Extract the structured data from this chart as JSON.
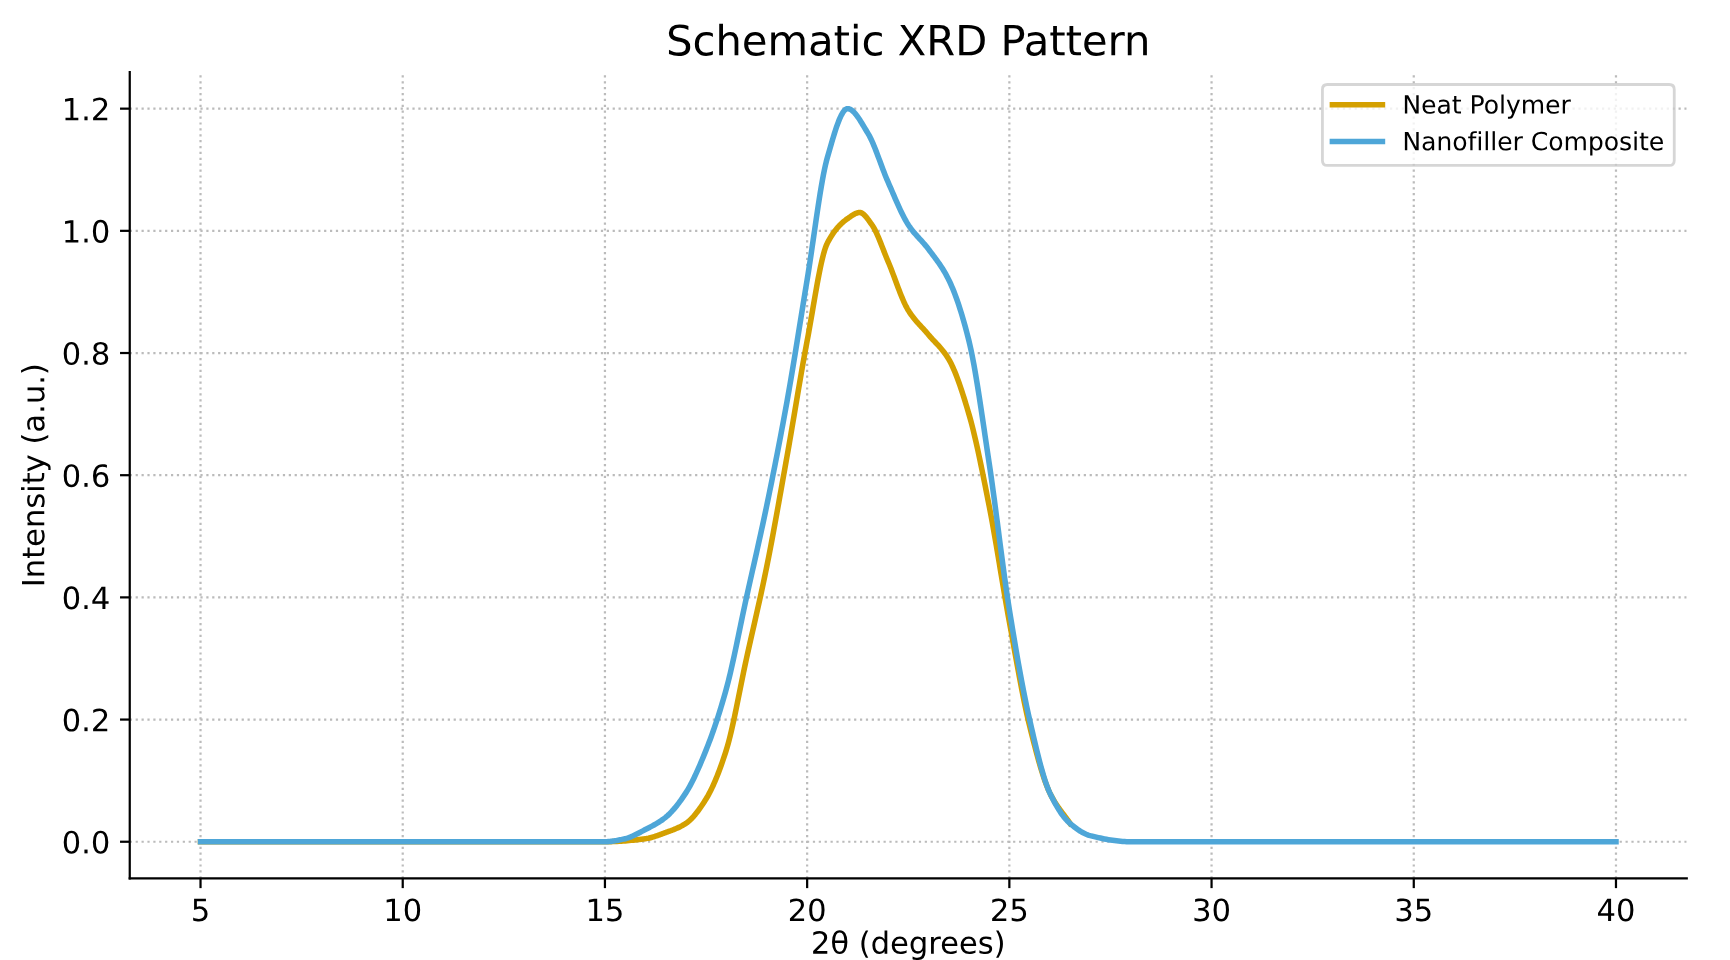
{
  "chart_data": {
    "type": "line",
    "title": "Schematic XRD Pattern",
    "xlabel": "2θ (degrees)",
    "ylabel": "Intensity (a.u.)",
    "xlim": [
      3.25,
      41.75
    ],
    "ylim": [
      -0.06,
      1.26
    ],
    "xticks": [
      5,
      10,
      15,
      20,
      25,
      30,
      35,
      40
    ],
    "yticks": [
      {
        "value": 0,
        "label": "0.0"
      },
      0.2,
      0.4,
      0.6,
      0.8,
      {
        "value": 1,
        "label": "1.0"
      },
      1.2
    ],
    "grid": true,
    "legend": "top right",
    "line_style": "solid",
    "marker": "none",
    "series": [
      {
        "name": "Neat Polymer",
        "color": "#d4a000",
        "x": [
          5,
          10,
          15,
          16,
          16.5,
          17,
          17.5,
          18,
          18.5,
          19,
          19.5,
          20,
          20.5,
          21,
          21.3,
          21.6,
          22,
          22.5,
          23,
          23.5,
          24,
          24.5,
          25,
          25.5,
          26,
          26.5
        ],
        "values": [
          0,
          0,
          0,
          0.005,
          0.015,
          0.03,
          0.07,
          0.15,
          0.3,
          0.45,
          0.63,
          0.82,
          0.98,
          1.02,
          1.03,
          1.01,
          0.95,
          0.87,
          0.83,
          0.79,
          0.7,
          0.55,
          0.36,
          0.19,
          0.08,
          0.03
        ]
      },
      {
        "name": "Nanofiller Composite",
        "color": "#4ea6d8",
        "x": [
          5,
          10,
          15,
          15.5,
          16,
          16.5,
          17,
          17.5,
          18,
          18.5,
          19,
          19.5,
          20,
          20.5,
          21,
          21.5,
          22,
          22.5,
          23,
          23.5,
          24,
          24.5,
          25,
          25.5,
          26,
          26.5,
          27,
          28,
          30,
          35,
          40
        ],
        "values": [
          0,
          0,
          0,
          0.005,
          0.02,
          0.04,
          0.08,
          0.15,
          0.25,
          0.4,
          0.55,
          0.72,
          0.92,
          1.12,
          1.2,
          1.16,
          1.08,
          1.01,
          0.97,
          0.92,
          0.82,
          0.62,
          0.38,
          0.2,
          0.08,
          0.03,
          0.01,
          0,
          0,
          0,
          0
        ]
      }
    ]
  }
}
